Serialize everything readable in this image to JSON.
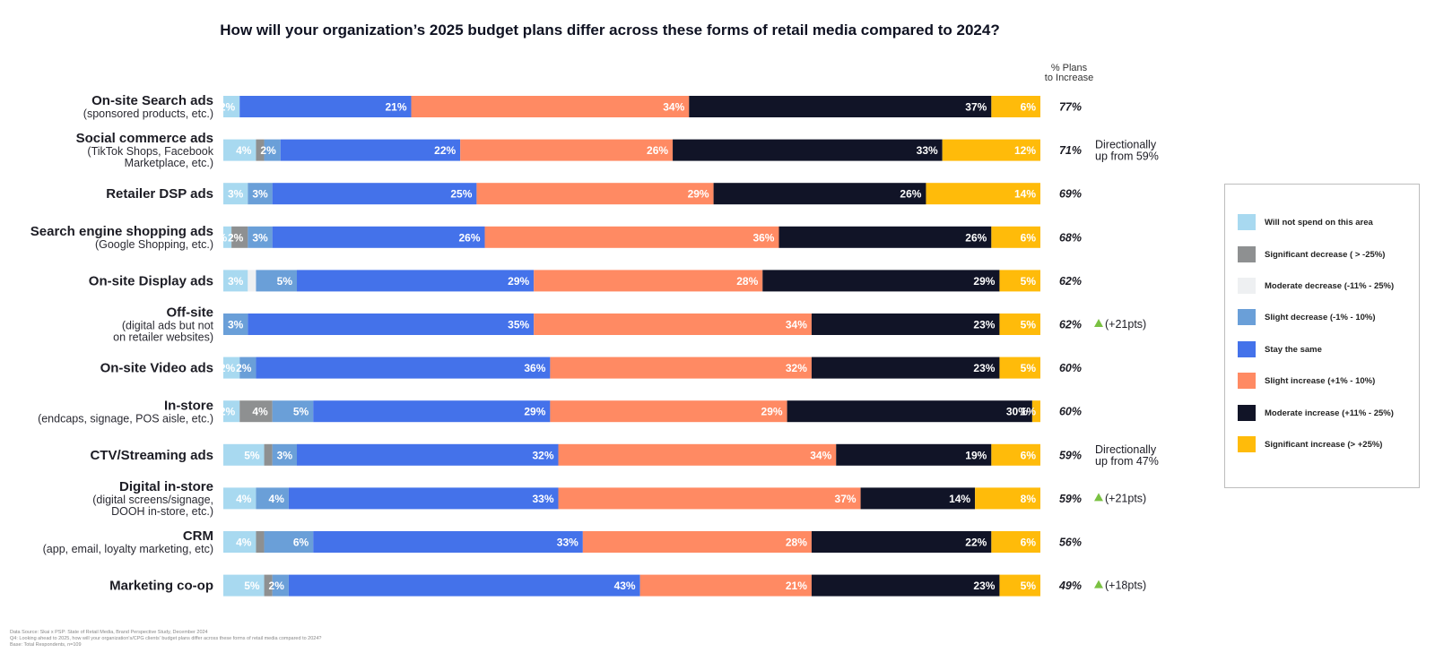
{
  "title": "How will your organization’s 2025 budget plans differ across these forms of retail media compared to 2024?",
  "column_header": [
    "% Plans",
    "to Increase"
  ],
  "footnotes": [
    "Data Source: Skai x PSP: State of Retail Media, Brand Perspective Study, December 2024",
    "Q4: Looking ahead to 2025, how will your organization's/CPG clients' budget plans differ across these forms of retail media compared to 2024?",
    "Base: Total Respondents, n=109"
  ],
  "legend": [
    {
      "label": "Will not spend on this area",
      "color": "#a8d9f0"
    },
    {
      "label": "Significant decrease ( > -25%)",
      "color": "#8e9091"
    },
    {
      "label": "Moderate decrease (-11% - 25%)",
      "color": "#eef0f2"
    },
    {
      "label": "Slight decrease (-1% - 10%)",
      "color": "#6a9fd8"
    },
    {
      "label": "Stay the same",
      "color": "#4472ea"
    },
    {
      "label": "Slight increase (+1% - 10%)",
      "color": "#ff8a63"
    },
    {
      "label": "Moderate increase (+11% - 25%)",
      "color": "#111427"
    },
    {
      "label": "Significant increase (> +25%)",
      "color": "#ffbb0a"
    }
  ],
  "chart_data": {
    "type": "bar",
    "orientation": "horizontal",
    "stacked": true,
    "title": "How will your organization’s 2025 budget plans differ across these forms of retail media compared to 2024?",
    "series_names": [
      "Will not spend on this area",
      "Significant decrease ( > -25%)",
      "Moderate decrease (-11% - 25%)",
      "Slight decrease (-1% - 10%)",
      "Stay the same",
      "Slight increase (+1% - 10%)",
      "Moderate increase (+11% - 25%)",
      "Significant increase (> +25%)"
    ],
    "rows": [
      {
        "title": "On-site Search ads",
        "subtitle": [
          "(sponsored products, etc.)"
        ],
        "values": [
          2,
          0,
          0,
          0,
          21,
          34,
          37,
          6
        ],
        "total": "77%",
        "note": []
      },
      {
        "title": "Social commerce ads",
        "subtitle": [
          "(TikTok Shops, Facebook",
          "Marketplace, etc.)"
        ],
        "values": [
          4,
          1,
          0,
          2,
          22,
          26,
          33,
          12
        ],
        "total": "71%",
        "note": [
          "Directionally",
          "up from 59%"
        ]
      },
      {
        "title": "Retailer DSP ads",
        "subtitle": [],
        "values": [
          3,
          0,
          0,
          3,
          25,
          29,
          26,
          14
        ],
        "total": "69%",
        "note": []
      },
      {
        "title": "Search engine shopping ads",
        "subtitle": [
          "(Google Shopping, etc.)"
        ],
        "values": [
          1,
          2,
          0,
          3,
          26,
          36,
          26,
          6
        ],
        "total": "68%",
        "note": []
      },
      {
        "title": "On-site Display ads",
        "subtitle": [],
        "values": [
          3,
          0,
          1,
          5,
          29,
          28,
          29,
          5
        ],
        "total": "62%",
        "note": []
      },
      {
        "title": "Off-site",
        "subtitle": [
          "(digital ads but not",
          "on retailer websites)"
        ],
        "values": [
          0,
          0,
          0,
          3,
          35,
          34,
          23,
          5
        ],
        "total": "62%",
        "note": [
          "(+21pts)"
        ]
      },
      {
        "title": "On-site Video ads",
        "subtitle": [],
        "values": [
          2,
          0,
          0,
          2,
          36,
          32,
          23,
          5
        ],
        "total": "60%",
        "note": []
      },
      {
        "title": "In-store",
        "subtitle": [
          "(endcaps, signage, POS aisle, etc.)"
        ],
        "values": [
          2,
          4,
          0,
          5,
          29,
          29,
          30,
          1
        ],
        "total": "60%",
        "note": []
      },
      {
        "title": "CTV/Streaming ads",
        "subtitle": [],
        "values": [
          5,
          1,
          0,
          3,
          32,
          34,
          19,
          6
        ],
        "total": "59%",
        "note": [
          "Directionally",
          "up from 47%"
        ]
      },
      {
        "title": "Digital in-store",
        "subtitle": [
          "(digital screens/signage,",
          "DOOH in-store, etc.)"
        ],
        "values": [
          4,
          0,
          0,
          4,
          33,
          37,
          14,
          8
        ],
        "total": "59%",
        "note": [
          "(+21pts)"
        ]
      },
      {
        "title": "CRM",
        "subtitle": [
          "(app, email, loyalty marketing, etc)"
        ],
        "values": [
          4,
          1,
          0,
          6,
          33,
          28,
          22,
          6
        ],
        "total": "56%",
        "note": []
      },
      {
        "title": "Marketing co-op",
        "subtitle": [],
        "values": [
          5,
          1,
          0,
          2,
          43,
          21,
          23,
          5
        ],
        "total": "49%",
        "note": [
          "(+18pts)"
        ]
      }
    ],
    "hidden_value_labels": [
      [
        1,
        1
      ],
      [
        4,
        2
      ],
      [
        7,
        2
      ],
      [
        8,
        1
      ],
      [
        10,
        1
      ],
      [
        11,
        1
      ]
    ],
    "up_arrow_color": "#7ac142"
  }
}
